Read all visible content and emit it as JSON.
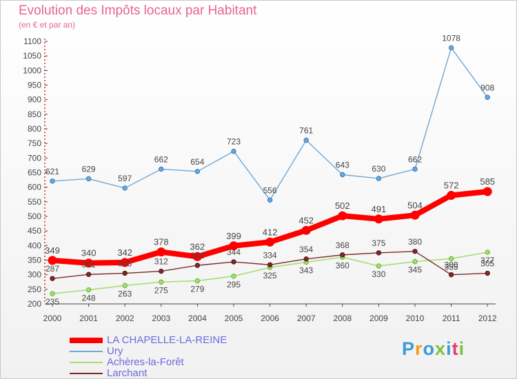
{
  "page": {
    "title": "Evolution des Impôts locaux par Habitant",
    "subtitle": "(en € et par an)"
  },
  "chart_data": {
    "type": "line",
    "title": "Evolution des Impôts locaux par Habitant",
    "subtitle": "(en € et par an)",
    "xlabel": "",
    "ylabel": "",
    "categories": [
      "2000",
      "2001",
      "2002",
      "2003",
      "2004",
      "2005",
      "2006",
      "2007",
      "2008",
      "2009",
      "2010",
      "2011",
      "2012"
    ],
    "ylim": [
      200,
      1100
    ],
    "yticks": [
      200,
      250,
      300,
      350,
      400,
      450,
      500,
      550,
      600,
      650,
      700,
      750,
      800,
      850,
      900,
      950,
      1000,
      1050,
      1100
    ],
    "grid": false,
    "legend_position": "bottom-left",
    "series": [
      {
        "name": "LA CHAPELLE-LA-REINE",
        "color": "#ff0000",
        "values": [
          349,
          340,
          342,
          378,
          362,
          399,
          412,
          452,
          502,
          491,
          504,
          572,
          585
        ]
      },
      {
        "name": "Ury",
        "color": "#6fa7d6",
        "values": [
          621,
          629,
          597,
          662,
          654,
          723,
          556,
          761,
          643,
          630,
          662,
          1078,
          908
        ]
      },
      {
        "name": "Achères-la-Forêt",
        "color": "#a6dd72",
        "values": [
          235,
          248,
          263,
          275,
          279,
          295,
          325,
          343,
          360,
          330,
          345,
          355,
          377
        ]
      },
      {
        "name": "Larchant",
        "color": "#7a2a2a",
        "values": [
          287,
          301,
          305,
          312,
          332,
          344,
          334,
          354,
          368,
          375,
          380,
          300,
          305
        ]
      }
    ]
  },
  "branding": {
    "logo_text": "Proxiti",
    "logo_colors": [
      "#3a9bd6",
      "#f29b1c",
      "#3a9bd6",
      "#7ac142",
      "#3a9bd6",
      "#e33d6e",
      "#7ac142"
    ]
  }
}
